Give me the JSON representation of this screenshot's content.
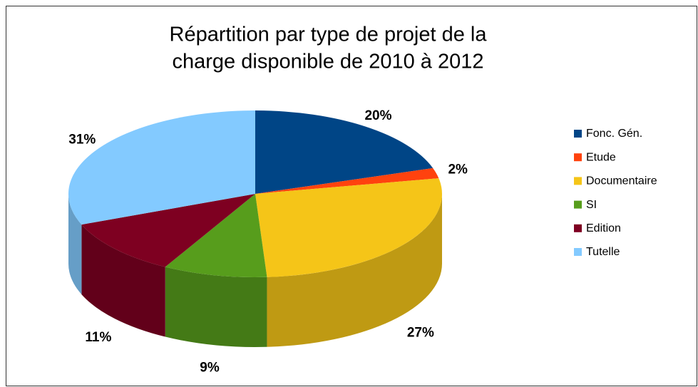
{
  "chart_data": {
    "type": "pie3d",
    "title": [
      "Répartition par type de projet de la",
      "charge disponible de 2010 à 2012"
    ],
    "categories": [
      "Fonc. Gén.",
      "Etude",
      "Documentaire",
      "SI",
      "Edition",
      "Tutelle"
    ],
    "values": [
      20,
      2,
      27,
      9,
      11,
      31
    ],
    "value_labels": [
      "20%",
      "2%",
      "27%",
      "9%",
      "11%",
      "31%"
    ],
    "colors": [
      "#004586",
      "#ff420e",
      "#f5c518",
      "#579d1c",
      "#7e0021",
      "#83caff"
    ],
    "legend": "right"
  }
}
